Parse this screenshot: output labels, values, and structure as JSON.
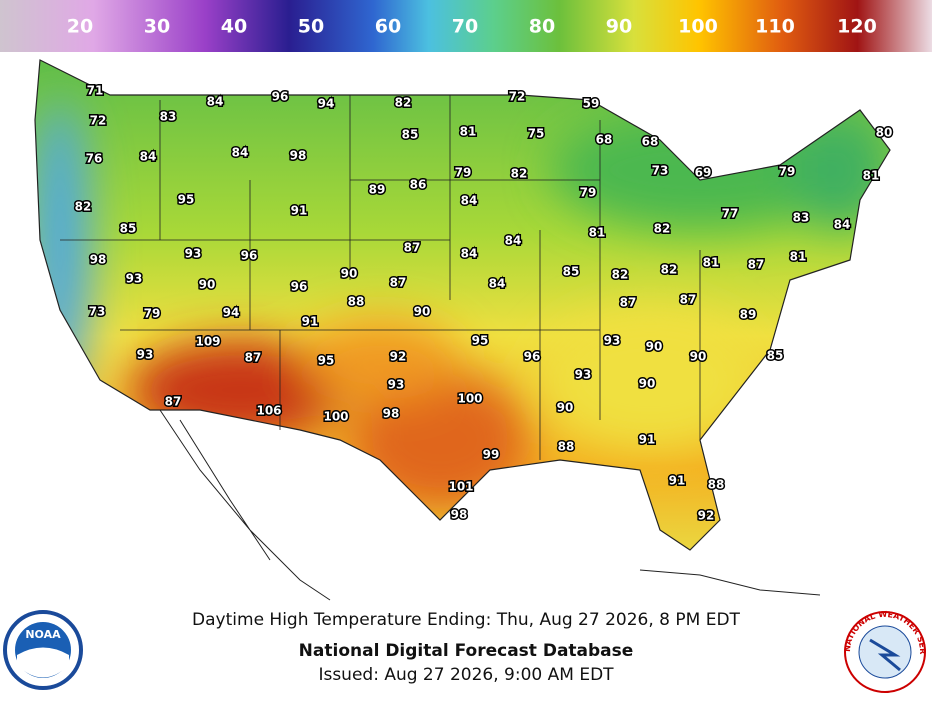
{
  "colorbar": {
    "labels": [
      20,
      30,
      40,
      50,
      60,
      70,
      80,
      90,
      100,
      110,
      120
    ]
  },
  "map": {
    "temperatures": [
      71,
      72,
      84,
      96,
      94,
      82,
      72,
      59,
      83,
      85,
      81,
      75,
      68,
      68,
      80,
      76,
      84,
      84,
      98,
      79,
      82,
      73,
      69,
      79,
      81,
      89,
      86,
      79,
      95,
      84,
      82,
      91,
      77,
      83,
      84,
      85,
      82,
      81,
      84,
      87,
      84,
      98,
      93,
      96,
      85,
      82,
      82,
      81,
      87,
      81,
      93,
      90,
      90,
      87,
      84,
      96,
      88,
      87,
      87,
      73,
      79,
      94,
      90,
      91,
      89,
      95,
      93,
      90,
      109,
      87,
      95,
      92,
      96,
      90,
      85,
      93,
      93,
      93,
      90,
      87,
      106,
      100,
      98,
      100,
      90,
      91,
      88,
      99,
      101,
      91,
      88,
      98,
      92
    ]
  },
  "caption": {
    "valid": "Daytime High Temperature Ending: Thu, Aug 27 2026, 8 PM EDT",
    "title": "National Digital Forecast Database",
    "issued": "Issued: Aug 27 2026, 9:00 AM EDT"
  },
  "logos": {
    "noaa": "NOAA",
    "nws": "NATIONAL WEATHER SERVICE"
  }
}
